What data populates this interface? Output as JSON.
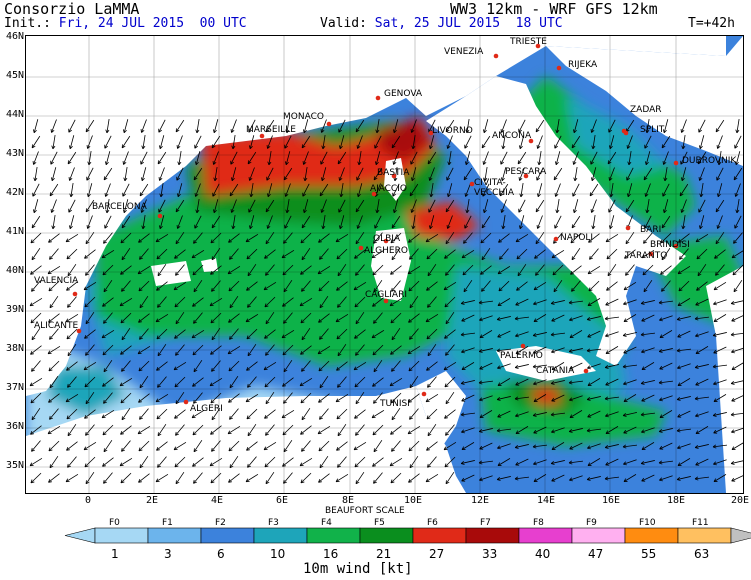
{
  "header": {
    "org": "Consorzio LaMMA",
    "model": "WW3 12km - WRF GFS 12km",
    "init_label": "Init.:",
    "init_value": "Fri, 24 JUL 2015  00 UTC",
    "valid_label": "Valid:",
    "valid_value": "Sat, 25 JUL 2015  18 UTC",
    "forecast_hour": "T=+42h"
  },
  "axes": {
    "lat_labels": [
      "46N",
      "45N",
      "44N",
      "43N",
      "42N",
      "41N",
      "40N",
      "39N",
      "38N",
      "37N",
      "36N",
      "35N"
    ],
    "lon_labels": [
      "0",
      "2E",
      "4E",
      "6E",
      "8E",
      "10E",
      "12E",
      "14E",
      "16E",
      "18E",
      "20E"
    ]
  },
  "cities": [
    {
      "name": "TRIESTE"
    },
    {
      "name": "VENEZIA"
    },
    {
      "name": "RIJEKA"
    },
    {
      "name": "GENOVA"
    },
    {
      "name": "MONACO"
    },
    {
      "name": "MARSEILLE"
    },
    {
      "name": "LIVORNO"
    },
    {
      "name": "ANCONA"
    },
    {
      "name": "ZADAR"
    },
    {
      "name": "SPLIT"
    },
    {
      "name": "DUBROVNIK"
    },
    {
      "name": "PESCARA"
    },
    {
      "name": "BASTIA"
    },
    {
      "name": "AJACCIO"
    },
    {
      "name": "CIVITA-VECCHIA"
    },
    {
      "name": "BARCELONA"
    },
    {
      "name": "OLBIA"
    },
    {
      "name": "NAPOLI"
    },
    {
      "name": "BARI"
    },
    {
      "name": "BRINDISI"
    },
    {
      "name": "ALGHERO"
    },
    {
      "name": "TARANTO"
    },
    {
      "name": "VALENCIA"
    },
    {
      "name": "CAGLIARI"
    },
    {
      "name": "ALICANTE"
    },
    {
      "name": "PALERMO"
    },
    {
      "name": "CATANIA"
    },
    {
      "name": "TUNISI"
    },
    {
      "name": "ALGERI"
    }
  ],
  "legend": {
    "scale_title": "BEAUFORT SCALE",
    "variable_title": "10m wind [kt]",
    "force_labels": [
      "F0",
      "F1",
      "F2",
      "F3",
      "F4",
      "F5",
      "F6",
      "F7",
      "F8",
      "F9",
      "F10",
      "F11"
    ],
    "speed_labels": [
      "1",
      "3",
      "6",
      "10",
      "16",
      "21",
      "27",
      "33",
      "40",
      "47",
      "55",
      "63"
    ],
    "colors": [
      "#a6d8f4",
      "#6cb4ec",
      "#3c82dc",
      "#1ea5ba",
      "#11b24a",
      "#0a8e1e",
      "#e02a18",
      "#a80a0a",
      "#e73fcf",
      "#ffb0f0",
      "#ff8c10",
      "#ffc060"
    ]
  },
  "map_colors": {
    "land": "#ffffff",
    "sea_light": "#a6d8f4",
    "sea_mid": "#6cb4ec",
    "sea_blue": "#3c82dc",
    "teal": "#1ea5ba",
    "green_light": "#11b24a",
    "green_dark": "#0a8e1e",
    "red": "#e02a18",
    "dark_red": "#a80a0a",
    "arrow": "#000000",
    "city_dot": "#e02a18"
  }
}
